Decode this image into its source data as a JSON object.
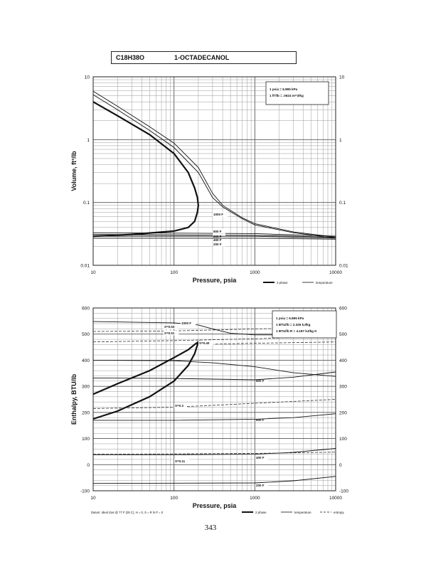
{
  "header": {
    "formula": "C18H38O",
    "name": "1-OCTADECANOL"
  },
  "page_number": "343",
  "chart_data": [
    {
      "type": "line",
      "x_scale": "log",
      "y_scale": "log",
      "xlabel": "Pressure,  psia",
      "ylabel": "Volume,  ft^3/lb",
      "xlim": [
        10,
        10000
      ],
      "ylim": [
        0.01,
        10
      ],
      "x_ticks": [
        "10",
        "100",
        "1000",
        "10000"
      ],
      "y_ticks": [
        "0.01",
        "0.1",
        "1",
        "10"
      ],
      "note_lines": [
        "1 psia  =  6.895 kPa",
        "1 ft^3/lb  =  .0624 m^3/kg"
      ],
      "legend": [
        {
          "label": "2 phase",
          "style": "thick"
        },
        {
          "label": "temperature",
          "style": "thin"
        }
      ],
      "series": [
        {
          "label": "two-phase envelope",
          "style": "thick",
          "points": [
            [
              10,
              0.029
            ],
            [
              30,
              0.031
            ],
            [
              100,
              0.035
            ],
            [
              150,
              0.04
            ],
            [
              180,
              0.05
            ],
            [
              195,
              0.07
            ],
            [
              200,
              0.09
            ],
            [
              195,
              0.12
            ],
            [
              180,
              0.17
            ],
            [
              150,
              0.3
            ],
            [
              100,
              0.6
            ],
            [
              50,
              1.2
            ],
            [
              20,
              2.4
            ],
            [
              10,
              4.0
            ]
          ]
        },
        {
          "label": "1000 F",
          "style": "thin",
          "points": [
            [
              10,
              5.2
            ],
            [
              20,
              3.0
            ],
            [
              50,
              1.4
            ],
            [
              100,
              0.75
            ],
            [
              200,
              0.3
            ],
            [
              300,
              0.12
            ],
            [
              400,
              0.085
            ],
            [
              700,
              0.055
            ],
            [
              1000,
              0.044
            ],
            [
              3000,
              0.033
            ],
            [
              10000,
              0.027
            ]
          ]
        },
        {
          "label": "",
          "style": "thin",
          "points": [
            [
              10,
              5.9
            ],
            [
              20,
              3.4
            ],
            [
              50,
              1.6
            ],
            [
              100,
              0.88
            ],
            [
              200,
              0.36
            ],
            [
              300,
              0.14
            ],
            [
              400,
              0.09
            ],
            [
              700,
              0.057
            ],
            [
              1000,
              0.046
            ],
            [
              3000,
              0.034
            ],
            [
              10000,
              0.028
            ]
          ]
        },
        {
          "label": "800 F",
          "style": "thin",
          "points": [
            [
              10,
              0.033
            ],
            [
              1000,
              0.032
            ],
            [
              10000,
              0.029
            ]
          ]
        },
        {
          "label": "600 F",
          "style": "thin",
          "points": [
            [
              10,
              0.031
            ],
            [
              1000,
              0.03
            ],
            [
              10000,
              0.028
            ]
          ]
        },
        {
          "label": "400 F",
          "style": "thin",
          "points": [
            [
              10,
              0.029
            ],
            [
              1000,
              0.029
            ],
            [
              10000,
              0.027
            ]
          ]
        },
        {
          "label": "200 F",
          "style": "thin",
          "points": [
            [
              10,
              0.027
            ],
            [
              1000,
              0.027
            ],
            [
              10000,
              0.026
            ]
          ]
        }
      ]
    },
    {
      "type": "line",
      "x_scale": "log",
      "y_scale": "linear",
      "xlabel": "Pressure,  psia",
      "ylabel": "Enthalpy,  BTU/lb",
      "xlim": [
        10,
        10000
      ],
      "ylim": [
        -100,
        600
      ],
      "x_ticks": [
        "10",
        "100",
        "1000",
        "10000"
      ],
      "y_ticks": [
        "-100",
        "0",
        "100",
        "200",
        "300",
        "400",
        "500",
        "600"
      ],
      "note_lines": [
        "1 psia  =  6.895 kPa",
        "1 BTU/lb  =  2.326 kJ/kg",
        "1 BTU/lb R  =  4.187 kJ/kg K"
      ],
      "footnote": "Datum: Ideal Gas @ 77 F (25 C),  H = 0,  S = R ln P = 0",
      "legend": [
        {
          "label": "2 phase",
          "style": "thick"
        },
        {
          "label": "temperature",
          "style": "thin"
        },
        {
          "label": "entropy",
          "style": "dashed"
        }
      ],
      "series": [
        {
          "label": "two-phase envelope",
          "style": "thick",
          "points": [
            [
              10,
              175
            ],
            [
              20,
              205
            ],
            [
              50,
              260
            ],
            [
              100,
              320
            ],
            [
              150,
              380
            ],
            [
              180,
              425
            ],
            [
              200,
              470
            ],
            [
              180,
              460
            ],
            [
              150,
              440
            ],
            [
              100,
              410
            ],
            [
              50,
              360
            ],
            [
              20,
              310
            ],
            [
              10,
              270
            ]
          ]
        },
        {
          "label": "1000 F",
          "style": "thin",
          "points": [
            [
              10,
              548
            ],
            [
              100,
              543
            ],
            [
              200,
              535
            ],
            [
              300,
              520
            ],
            [
              500,
              503
            ],
            [
              1000,
              497
            ],
            [
              3000,
              497
            ],
            [
              10000,
              499
            ]
          ]
        },
        {
          "label": "800 F",
          "style": "thin",
          "points": [
            [
              10,
              400
            ],
            [
              100,
              398
            ],
            [
              300,
              390
            ],
            [
              1000,
              375
            ],
            [
              3000,
              352
            ],
            [
              10000,
              338
            ]
          ]
        },
        {
          "label": "600 F",
          "style": "thin",
          "points": [
            [
              10,
              332
            ],
            [
              100,
              330
            ],
            [
              1000,
              325
            ],
            [
              3000,
              335
            ],
            [
              10000,
              355
            ]
          ]
        },
        {
          "label": "400 F",
          "style": "thin",
          "points": [
            [
              10,
              170
            ],
            [
              100,
              170
            ],
            [
              1000,
              174
            ],
            [
              3000,
              180
            ],
            [
              10000,
              195
            ]
          ]
        },
        {
          "label": "200 F",
          "style": "thin",
          "points": [
            [
              10,
              38
            ],
            [
              100,
              38
            ],
            [
              1000,
              40
            ],
            [
              3000,
              47
            ],
            [
              10000,
              62
            ]
          ]
        },
        {
          "label": "",
          "style": "thin",
          "points": [
            [
              10,
              -72
            ],
            [
              1000,
              -70
            ],
            [
              3000,
              -62
            ],
            [
              10000,
              -45
            ]
          ]
        },
        {
          "label": "S=0.53",
          "style": "dashed",
          "points": [
            [
              10,
              510
            ],
            [
              100,
              512
            ],
            [
              1000,
              520
            ],
            [
              10000,
              525
            ]
          ]
        },
        {
          "label": "S=0.51",
          "style": "dashed",
          "points": [
            [
              10,
              470
            ],
            [
              100,
              475
            ],
            [
              1000,
              482
            ],
            [
              10000,
              492
            ]
          ]
        },
        {
          "label": "S=0.40",
          "style": "dashed",
          "points": [
            [
              200,
              460
            ],
            [
              1000,
              465
            ],
            [
              10000,
              470
            ]
          ]
        },
        {
          "label": "S=0.3",
          "style": "dashed",
          "points": [
            [
              10,
              215
            ],
            [
              100,
              220
            ],
            [
              1000,
              235
            ],
            [
              10000,
              250
            ]
          ]
        },
        {
          "label": "S=0.11",
          "style": "dashed",
          "points": [
            [
              10,
              40
            ],
            [
              100,
              41
            ],
            [
              1000,
              43
            ],
            [
              10000,
              48
            ]
          ]
        }
      ]
    }
  ]
}
